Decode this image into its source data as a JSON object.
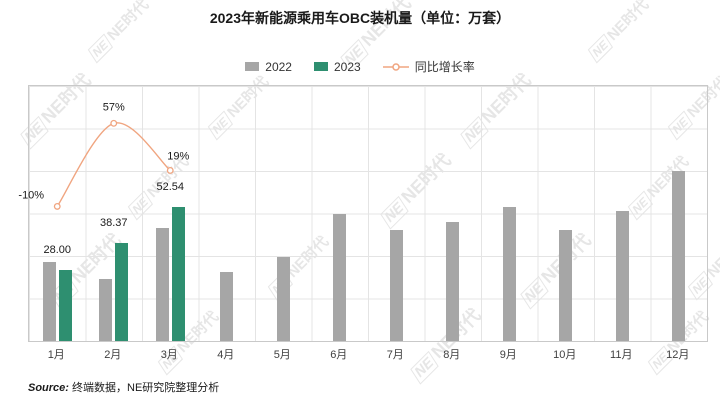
{
  "title": "2023年新能源乘用车OBC装机量（单位：万套）",
  "legend": {
    "s2022": "2022",
    "s2023": "2023",
    "growth": "同比增长率"
  },
  "source": {
    "prefix": "Source:",
    "text": " 终端数据，NE研究院整理分析"
  },
  "watermark_text": "NE时代",
  "watermark_logo": "NE",
  "colors": {
    "bar2022": "#a6a6a6",
    "bar2023": "#2e8f70",
    "growth_line": "#f0a580",
    "grid": "#e4e4e4",
    "border": "#c9c9c9"
  },
  "chart_data": {
    "type": "bar",
    "title": "2023年新能源乘用车OBC装机量（单位：万套）",
    "categories": [
      "1月",
      "2月",
      "3月",
      "4月",
      "5月",
      "6月",
      "7月",
      "8月",
      "9月",
      "10月",
      "11月",
      "12月"
    ],
    "series": [
      {
        "name": "2022",
        "type": "bar",
        "color": "#a6a6a6",
        "values": [
          31.1,
          24.4,
          44.2,
          27.0,
          33.0,
          50.0,
          43.5,
          46.5,
          52.5,
          43.5,
          51.0,
          66.5
        ]
      },
      {
        "name": "2023",
        "type": "bar",
        "color": "#2e8f70",
        "values": [
          28.0,
          38.37,
          52.54
        ],
        "labels": [
          "28.00",
          "38.37",
          "52.54"
        ]
      },
      {
        "name": "同比增长率",
        "type": "line",
        "color": "#f0a580",
        "values_pct": [
          -10,
          57,
          19
        ],
        "labels": [
          "-10%",
          "57%",
          "19%"
        ]
      }
    ],
    "ylim": [
      0,
      100
    ],
    "grid": true,
    "legend_position": "top",
    "xlabel": "",
    "ylabel": ""
  }
}
